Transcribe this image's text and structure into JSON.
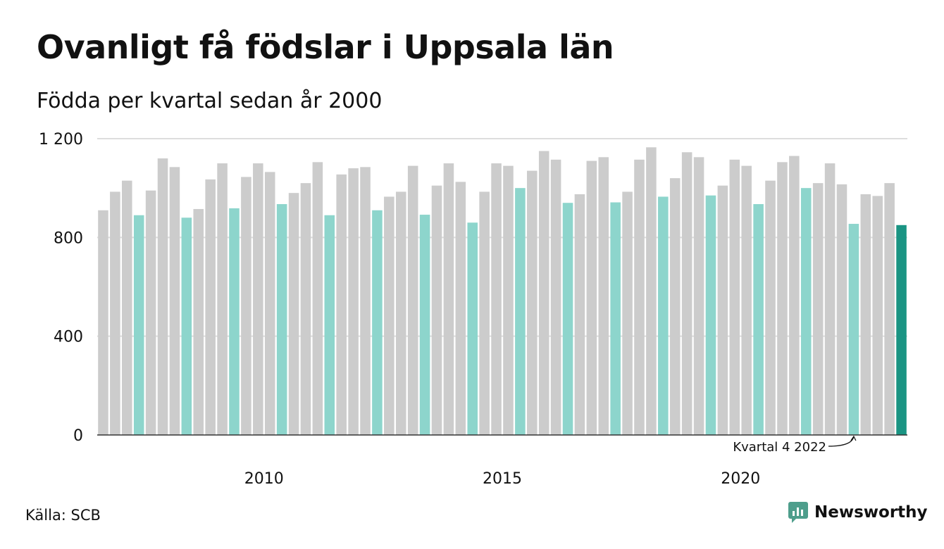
{
  "title": "Ovanligt få födslar i Uppsala län",
  "subtitle": "Födda per kvartal sedan år 2000",
  "source": "Källa: SCB",
  "logo": {
    "text": "Newsworthy",
    "icon": "newsworthy-logo-icon",
    "color": "#4e9e8c"
  },
  "colors": {
    "other_quarter": "#cccccc",
    "q4": "#8dd5cc",
    "latest": "#1a9483",
    "gridline": "#dddddd",
    "baseline": "#333333"
  },
  "annotation": {
    "text": "Kvartal 4 2022"
  },
  "chart_data": {
    "type": "bar",
    "title": "Ovanligt få födslar i Uppsala län",
    "subtitle": "Födda per kvartal sedan år 2000",
    "xlabel": "",
    "ylabel": "",
    "ylim": [
      0,
      1200
    ],
    "yticks": [
      0,
      400,
      800,
      1200
    ],
    "ytick_labels": [
      "0",
      "400",
      "800",
      "1 200"
    ],
    "xtick_labels": [
      "2010",
      "2015",
      "2020"
    ],
    "grid": true,
    "legend": false,
    "series": [
      {
        "values": [
          910,
          985,
          1030,
          890,
          990,
          1120,
          1085,
          880,
          915,
          1035,
          1100,
          918,
          1045,
          1100,
          1065,
          935,
          980,
          1020,
          1105,
          890,
          1055,
          1080,
          1085,
          910,
          965,
          985,
          1090,
          892,
          1010,
          1100,
          1025,
          860,
          985,
          1100,
          1090,
          1000,
          1070,
          1150,
          1115,
          940,
          975,
          1110,
          1125,
          942,
          985,
          1115,
          1165,
          965,
          1040,
          1145,
          1125,
          970,
          1010,
          1115,
          1090,
          935,
          1030,
          1105,
          1130,
          1000,
          1020,
          1100,
          1015,
          855,
          975,
          968,
          1020,
          850
        ],
        "quarters": [
          1,
          2,
          3,
          4,
          1,
          2,
          3,
          4,
          1,
          2,
          3,
          4,
          1,
          2,
          3,
          4,
          1,
          2,
          3,
          4,
          1,
          2,
          3,
          4,
          1,
          2,
          3,
          4,
          1,
          2,
          3,
          4,
          1,
          2,
          3,
          4,
          1,
          2,
          3,
          4,
          1,
          2,
          3,
          4,
          1,
          2,
          3,
          4,
          1,
          2,
          3,
          4,
          1,
          2,
          3,
          4,
          1,
          2,
          3,
          4,
          1,
          2,
          3,
          4,
          1,
          2,
          3,
          4
        ]
      }
    ]
  }
}
